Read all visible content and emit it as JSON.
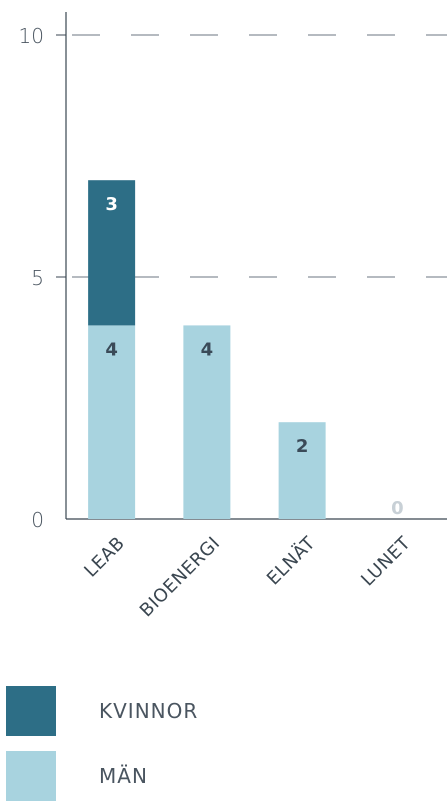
{
  "chart_data": {
    "type": "bar",
    "stacked": true,
    "categories": [
      "LEAB",
      "BIOENERGI",
      "ELNÄT",
      "LUNET"
    ],
    "series": [
      {
        "name": "MÄN",
        "values": [
          4,
          4,
          2,
          0
        ],
        "color": "#a8d3df",
        "label_color": "#3a4a58"
      },
      {
        "name": "KVINNOR",
        "values": [
          3,
          0,
          0,
          0
        ],
        "color": "#2d6e86",
        "label_color": "#ffffff"
      }
    ],
    "zero_label_color": "#c8d0d6",
    "ylim": [
      0,
      10
    ],
    "yticks": [
      "0",
      "5",
      "10"
    ],
    "grid": "dashed at 5 and 10",
    "legend_position": "bottom-left"
  },
  "legend": [
    {
      "label": "KVINNOR",
      "color": "#2d6e86"
    },
    {
      "label": "MÄN",
      "color": "#a8d3df"
    }
  ]
}
